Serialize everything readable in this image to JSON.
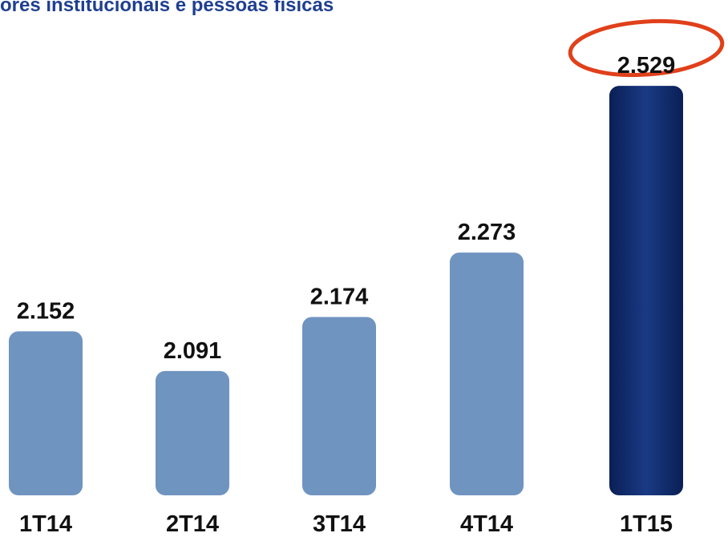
{
  "chart_data": {
    "type": "bar",
    "title": "ores institucionais e pessoas físicas",
    "categories": [
      "1T14",
      "2T14",
      "3T14",
      "4T14",
      "1T15"
    ],
    "values": [
      2152,
      2091,
      2174,
      2273,
      2529
    ],
    "value_labels": [
      "2.152",
      "2.091",
      "2.174",
      "2.273",
      "2.529"
    ],
    "colors": [
      "#7094c0",
      "#7094c0",
      "#7094c0",
      "#7094c0",
      "#0f2a6b"
    ],
    "ylim": [
      1900,
      2560
    ]
  }
}
